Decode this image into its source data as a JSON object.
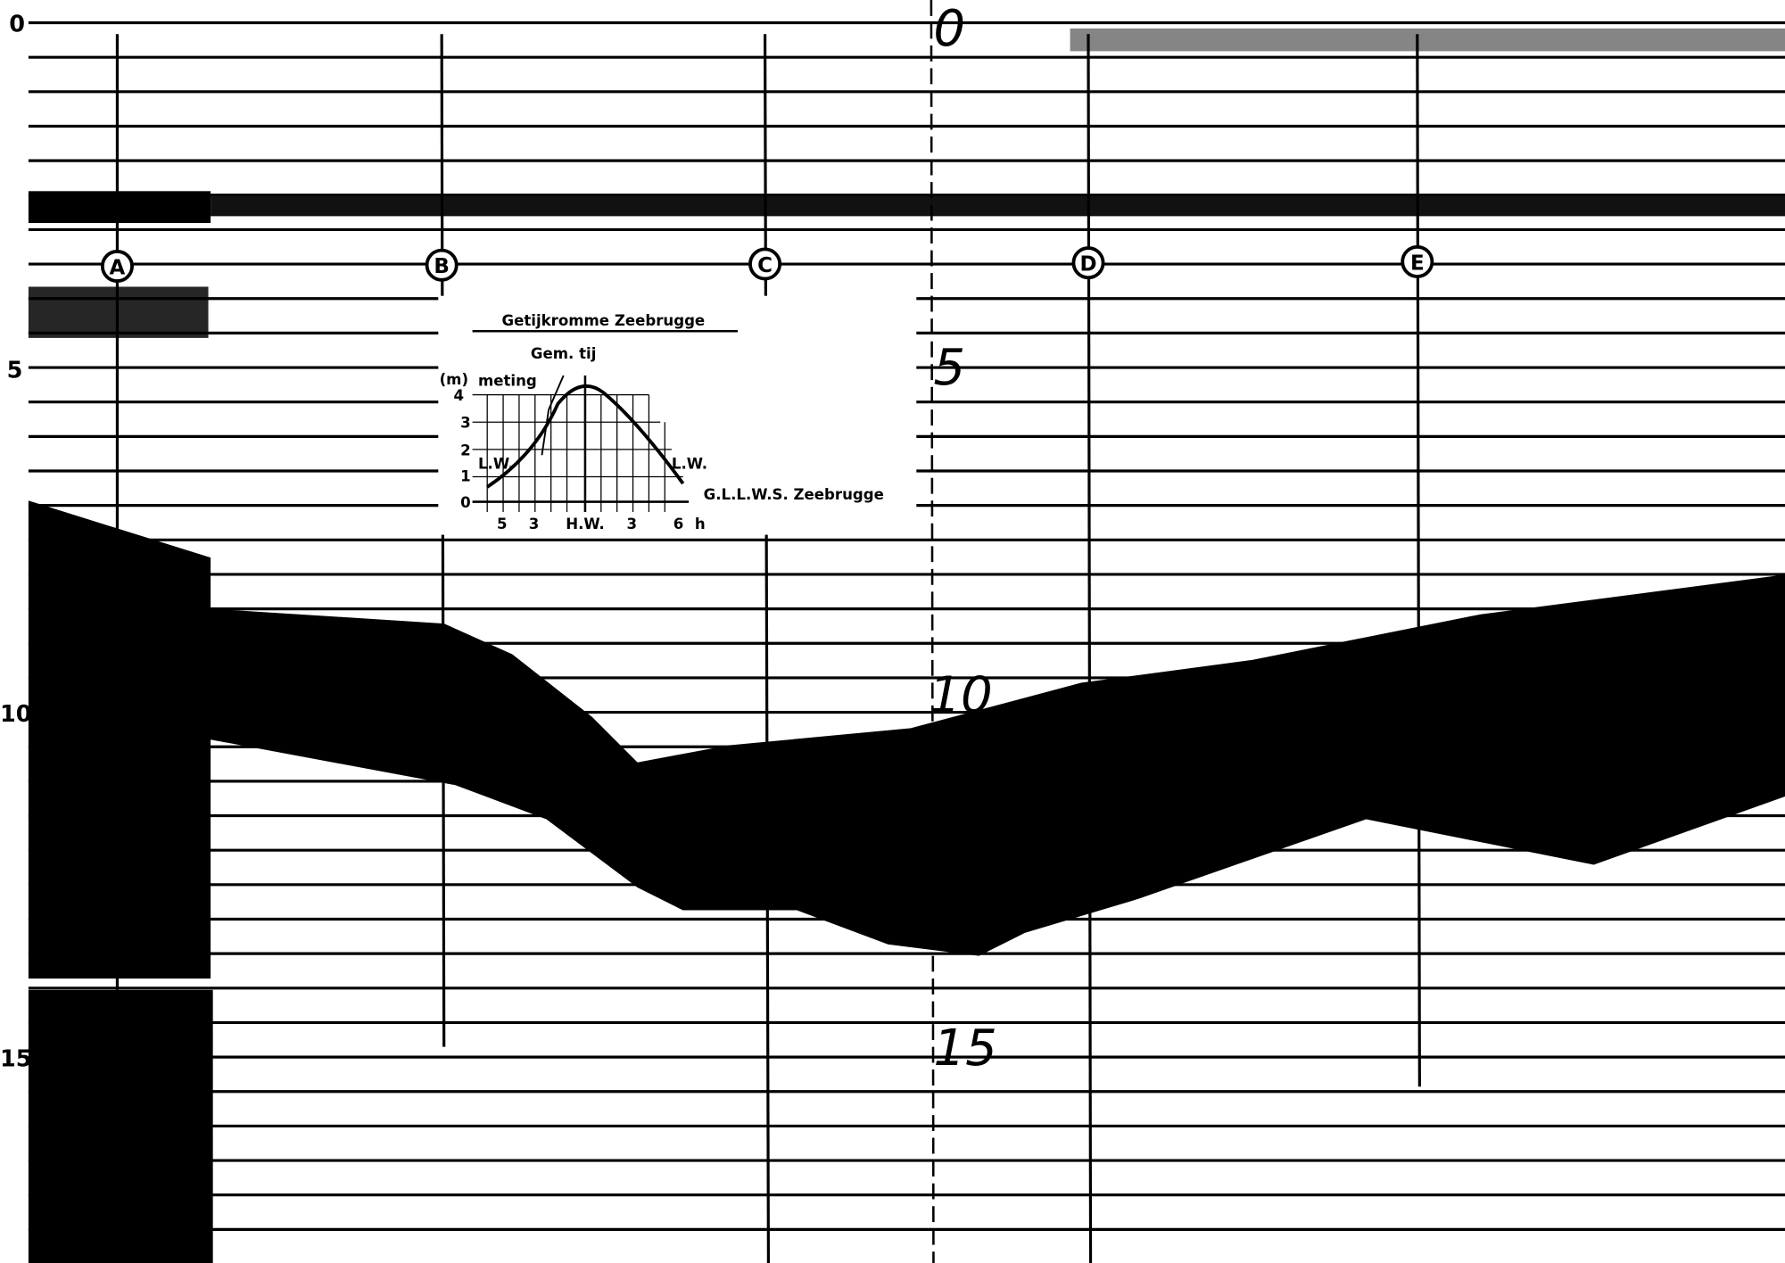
{
  "left_scale": [
    "0",
    "5",
    "10",
    "15"
  ],
  "center_scale": [
    "0",
    "5",
    "10",
    "15"
  ],
  "fixes": [
    "A",
    "B",
    "C",
    "D",
    "E"
  ],
  "inset": {
    "title": "Getijkromme  Zeebrugge",
    "subtitle": "Gem. tij",
    "unit": "(m)",
    "measurement": "meting",
    "yticks": [
      "4",
      "3",
      "2",
      "1",
      "0"
    ],
    "low_water_left": "L.W.",
    "low_water_right": "L.W.",
    "datum": "G.L.L.W.S. Zeebrugge",
    "xticks": [
      "5",
      "3",
      "H.W.",
      "3",
      "6"
    ],
    "xunit": "h"
  }
}
